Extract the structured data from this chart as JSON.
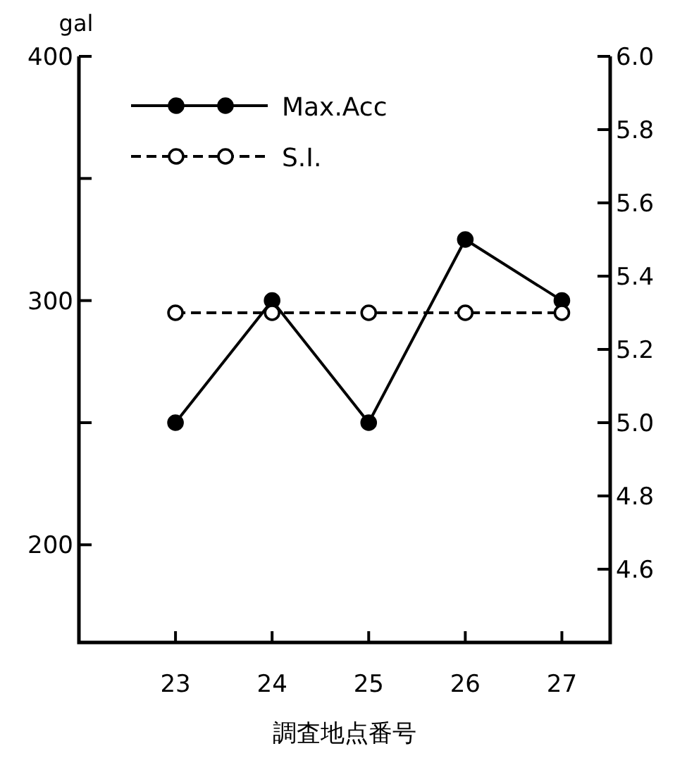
{
  "chart_data": {
    "type": "line",
    "xlabel": "調査地点番号",
    "ylabel": "gal",
    "x": [
      23,
      24,
      25,
      26,
      27
    ],
    "xlim": [
      22,
      27.5
    ],
    "xticks": [
      23,
      24,
      25,
      26,
      27
    ],
    "ylim": [
      160,
      400
    ],
    "yticks": [
      200,
      {
        "value": 250,
        "label": null
      },
      300,
      {
        "value": 350,
        "label": null
      },
      400
    ],
    "y2lim": [
      4.4,
      6.0
    ],
    "y2ticks": [
      {
        "value": 4.6,
        "label": "4.6"
      },
      {
        "value": 4.8,
        "label": "4.8"
      },
      {
        "value": 5.0,
        "label": "5.0"
      },
      {
        "value": 5.2,
        "label": "5.2"
      },
      {
        "value": 5.4,
        "label": "5.4"
      },
      {
        "value": 5.6,
        "label": "5.6"
      },
      {
        "value": 5.8,
        "label": "5.8"
      },
      {
        "value": 6.0,
        "label": "6.0"
      }
    ],
    "legend": "top left",
    "marker": "circle",
    "grid": false,
    "series": [
      {
        "name": "Max.Acc",
        "color": "#000000",
        "values": [
          250,
          300,
          250,
          325,
          300
        ],
        "line_style": "solid"
      },
      {
        "name": "S.I.",
        "color": "#000000",
        "values": [
          5.3,
          5.3,
          5.3,
          5.3,
          5.3
        ],
        "axis": "y2",
        "line_style": "dashed"
      }
    ]
  }
}
